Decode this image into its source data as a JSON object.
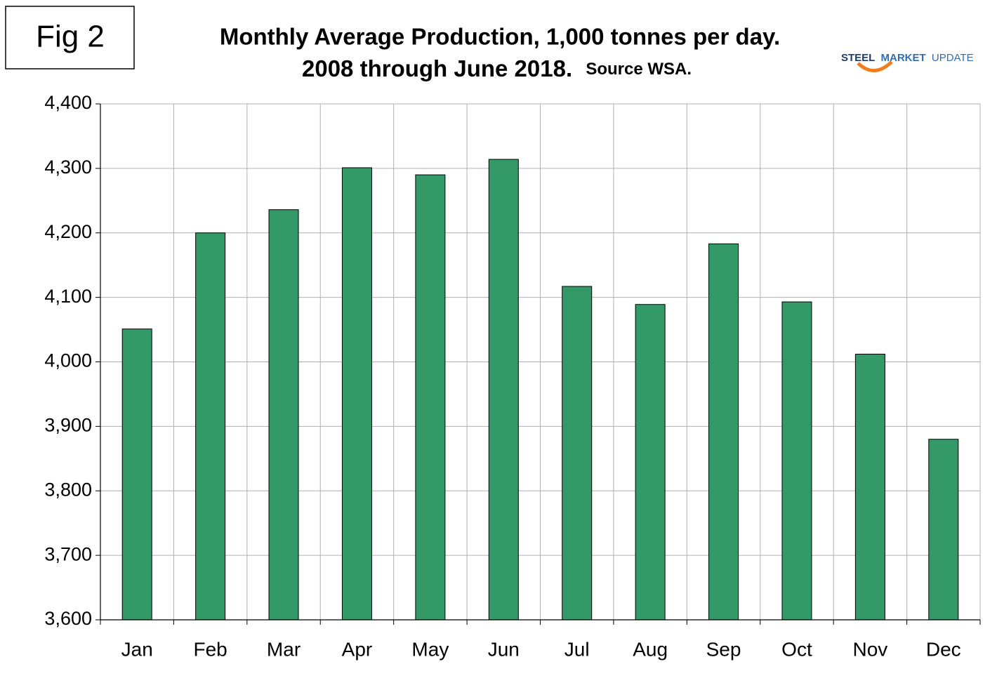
{
  "figure_label": "Fig 2",
  "logo": {
    "word1": "STEEL",
    "word2": "MARKET",
    "word3": "UPDATE"
  },
  "chart_data": {
    "type": "bar",
    "title": "Monthly Average Production, 1,000 tonnes per day.",
    "subtitle": "2008 through June 2018.",
    "source": "Source WSA.",
    "categories": [
      "Jan",
      "Feb",
      "Mar",
      "Apr",
      "May",
      "Jun",
      "Jul",
      "Aug",
      "Sep",
      "Oct",
      "Nov",
      "Dec"
    ],
    "values": [
      4051,
      4200,
      4236,
      4301,
      4290,
      4314,
      4117,
      4089,
      4183,
      4093,
      4012,
      3880
    ],
    "color": "#339966",
    "ylim": [
      3600,
      4400
    ],
    "yticks": [
      {
        "value": 3600,
        "label": "3,600"
      },
      {
        "value": 3700,
        "label": "3,700"
      },
      {
        "value": 3800,
        "label": "3,800"
      },
      {
        "value": 3900,
        "label": "3,900"
      },
      {
        "value": 4000,
        "label": "4,000"
      },
      {
        "value": 4100,
        "label": "4,100"
      },
      {
        "value": 4200,
        "label": "4,200"
      },
      {
        "value": 4300,
        "label": "4,300"
      },
      {
        "value": 4400,
        "label": "4,400"
      }
    ],
    "grid": true
  }
}
